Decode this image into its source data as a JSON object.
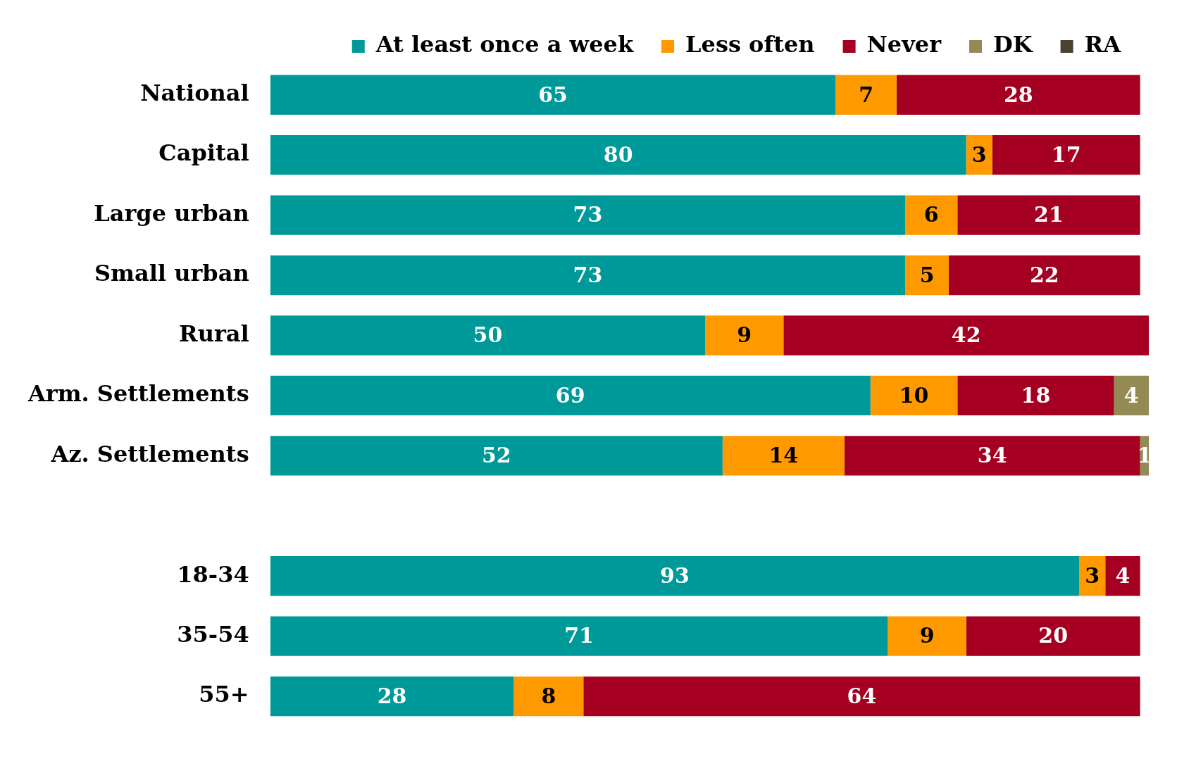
{
  "chart_data": {
    "type": "bar",
    "orientation": "horizontal",
    "stacked": true,
    "data_labels": true,
    "legend": "top right",
    "tick_labels": "y",
    "xlim": [
      0,
      101
    ],
    "categories": [
      "National",
      "Capital",
      "Large urban",
      "Small urban",
      "Rural",
      "Arm. Settlements",
      "Az. Settlements",
      null,
      "18-34",
      "35-54",
      "55+"
    ],
    "series": [
      {
        "name": "At least once a week",
        "color": "#009999",
        "values": [
          65,
          80,
          73,
          73,
          50,
          69,
          52,
          null,
          93,
          71,
          28
        ]
      },
      {
        "name": "Less often",
        "color": "#ff9900",
        "values": [
          7,
          3,
          6,
          5,
          9,
          10,
          14,
          null,
          3,
          9,
          8
        ]
      },
      {
        "name": "Never",
        "color": "#a50021",
        "values": [
          28,
          17,
          21,
          22,
          42,
          18,
          34,
          null,
          4,
          20,
          64
        ]
      },
      {
        "name": "DK",
        "color": "#948a54",
        "values": [
          null,
          null,
          null,
          null,
          null,
          4,
          1,
          null,
          null,
          null,
          null
        ]
      },
      {
        "name": "RA",
        "color": "#4a4330",
        "values": [
          null,
          null,
          null,
          null,
          null,
          null,
          null,
          null,
          null,
          null,
          null
        ]
      }
    ]
  }
}
